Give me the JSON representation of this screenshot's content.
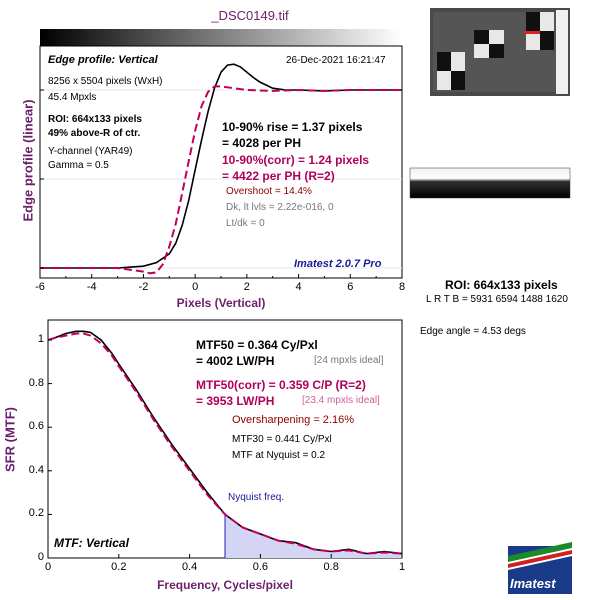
{
  "file_title": "_DSC0149.tif",
  "roi_summary": {
    "title": "ROI: 664x133 pixels",
    "line": "L R  T B = 5931 6594  1488 1620",
    "edge_angle": "Edge angle = 4.53 degs"
  },
  "logo": {
    "text": "Imatest"
  },
  "colors": {
    "measured": "#000000",
    "corrected": "#c0005a",
    "axis_label": "#6b1f6b",
    "nyquist_fill": "#c8c8f0",
    "nyquist_line": "#2020c0"
  },
  "edge_panel": {
    "title": "Edge profile: Vertical",
    "datetime": "26-Dec-2021 16:21:47",
    "info": [
      "8256 x 5504 pixels (WxH)",
      "45.4 Mpxls"
    ],
    "roi_lines": [
      "ROI: 664x133 pixels",
      "49% above-R of ctr."
    ],
    "channel_lines": [
      "Y-channel  (YAR49)",
      "Gamma = 0.5"
    ],
    "rise_lines": [
      "10-90% rise = 1.37 pixels",
      "= 4028 per PH"
    ],
    "corr_lines": [
      "10-90%(corr) = 1.24 pixels",
      "= 4422 per PH  (R=2)"
    ],
    "overshoot": "Overshoot = 14.4%",
    "dk_lines": [
      "Dk, lt lvls = 2.22e-016, 0",
      "Lt/dk = 0"
    ],
    "version": "Imatest 2.0.7 Pro",
    "xlabel": "Pixels (Vertical)",
    "ylabel": "Edge profile (linear)",
    "xticks": [
      "-6",
      "-4",
      "-2",
      "0",
      "2",
      "4",
      "6",
      "8"
    ]
  },
  "mtf_panel": {
    "mtf50_lines": [
      "MTF50 = 0.364 Cy/Pxl",
      "= 4002 LW/PH"
    ],
    "mtf50_ideal": "[24 mpxls ideal]",
    "corr_lines": [
      "MTF50(corr) = 0.359 C/P  (R=2)",
      "= 3953 LW/PH"
    ],
    "corr_ideal": "[23.4 mpxls ideal]",
    "oversharpening": "Oversharpening = 2.16%",
    "mtf30": "MTF30 = 0.441 Cy/Pxl",
    "mtf_nyq": "MTF at Nyquist = 0.2",
    "nyquist_label": "Nyquist freq.",
    "panel_label": "MTF: Vertical",
    "xlabel": "Frequency, Cycles/pixel",
    "ylabel": "SFR (MTF)",
    "xticks": [
      "0",
      "0.2",
      "0.4",
      "0.6",
      "0.8",
      "1"
    ],
    "yticks": [
      "0",
      "0.2",
      "0.4",
      "0.6",
      "0.8",
      "1"
    ]
  },
  "chart_data": [
    {
      "type": "line",
      "title": "Edge profile: Vertical",
      "xlabel": "Pixels (Vertical)",
      "ylabel": "Edge profile (linear)",
      "xlim": [
        -6,
        8
      ],
      "series": [
        {
          "x": [
            -6,
            -4,
            -3,
            -2,
            -1.5,
            -1,
            -0.75,
            -0.5,
            -0.25,
            0,
            0.25,
            0.5,
            0.75,
            1,
            1.25,
            1.5,
            1.75,
            2,
            2.25,
            2.5,
            3,
            3.5,
            4,
            5,
            6,
            7,
            8
          ],
          "y": [
            0.0,
            0.0,
            0.0,
            0.01,
            0.03,
            0.08,
            0.14,
            0.24,
            0.38,
            0.55,
            0.72,
            0.88,
            1.01,
            1.1,
            1.14,
            1.145,
            1.13,
            1.1,
            1.07,
            1.045,
            1.01,
            1.0,
            1.0,
            0.995,
            1.0,
            1.0,
            1.0
          ]
        },
        {
          "name": "corr (R=2)",
          "x": [
            -6,
            -4,
            -3,
            -2,
            -1.75,
            -1.5,
            -1.25,
            -1,
            -0.75,
            -0.5,
            -0.25,
            0,
            0.25,
            0.5,
            0.75,
            1,
            1.5,
            2,
            3,
            4,
            5,
            6,
            7,
            8
          ],
          "y": [
            0.0,
            0.0,
            0.0,
            -0.02,
            -0.03,
            -0.025,
            0.02,
            0.12,
            0.25,
            0.42,
            0.6,
            0.77,
            0.91,
            0.99,
            1.02,
            1.02,
            1.01,
            1.0,
            0.995,
            1.0,
            0.995,
            1.0,
            1.0,
            1.0
          ]
        }
      ]
    },
    {
      "type": "line",
      "title": "MTF: Vertical",
      "xlabel": "Frequency, Cycles/pixel",
      "ylabel": "SFR (MTF)",
      "xlim": [
        0,
        1
      ],
      "ylim": [
        0,
        1.05
      ],
      "nyquist": 0.5,
      "series": [
        {
          "x": [
            0,
            0.02,
            0.05,
            0.08,
            0.1,
            0.12,
            0.15,
            0.18,
            0.2,
            0.25,
            0.3,
            0.35,
            0.4,
            0.45,
            0.5,
            0.55,
            0.6,
            0.65,
            0.7,
            0.75,
            0.8,
            0.85,
            0.9,
            0.95,
            1.0
          ],
          "y": [
            1.0,
            1.01,
            1.03,
            1.04,
            1.04,
            1.035,
            1.0,
            0.94,
            0.89,
            0.77,
            0.64,
            0.52,
            0.41,
            0.3,
            0.2,
            0.14,
            0.11,
            0.08,
            0.07,
            0.04,
            0.03,
            0.04,
            0.02,
            0.03,
            0.02
          ]
        },
        {
          "name": "corr (R=2)",
          "x": [
            0,
            0.02,
            0.05,
            0.08,
            0.1,
            0.12,
            0.15,
            0.18,
            0.2,
            0.25,
            0.3,
            0.35,
            0.4,
            0.45,
            0.5,
            0.55,
            0.6,
            0.65,
            0.7,
            0.75,
            0.8,
            0.85,
            0.9,
            0.95,
            1.0
          ],
          "y": [
            1.0,
            1.01,
            1.02,
            1.03,
            1.03,
            1.02,
            0.985,
            0.93,
            0.88,
            0.76,
            0.63,
            0.51,
            0.4,
            0.29,
            0.2,
            0.14,
            0.11,
            0.08,
            0.065,
            0.04,
            0.03,
            0.035,
            0.02,
            0.025,
            0.02
          ]
        }
      ]
    }
  ]
}
